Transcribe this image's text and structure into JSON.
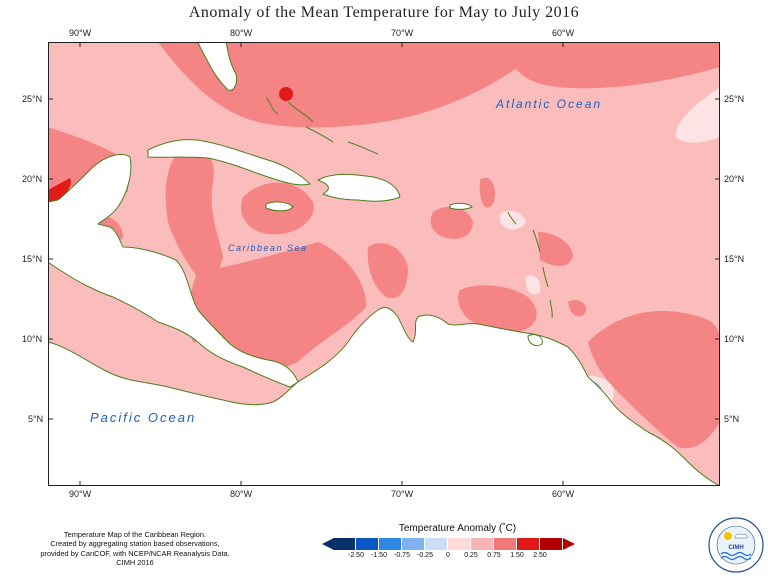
{
  "title": "Anomaly of the Mean Temperature for May to July 2016",
  "axes": {
    "longitude_top": [
      "90°W",
      "80°W",
      "70°W",
      "60°W"
    ],
    "longitude_bottom": [
      "90°W",
      "80°W",
      "70°W",
      "60°W"
    ],
    "latitude_left": [
      "25°N",
      "20°N",
      "15°N",
      "10°N",
      "5°N"
    ],
    "latitude_right": [
      "25°N",
      "20°N",
      "15°N",
      "10°N",
      "5°N"
    ]
  },
  "labels": {
    "atlantic": "Atlantic Ocean",
    "caribbean": "Caribbean Sea",
    "pacific": "Pacific Ocean"
  },
  "credit": {
    "line1": "Temperature Map of the Caribbean Region.",
    "line2": "Created by aggregating station based observations,",
    "line3": "provided by CariCOF, with NCEP/NCAR Reanalysis Data.",
    "line4": "CIMH 2016"
  },
  "legend": {
    "title": "Temperature Anomaly (˚C)",
    "ticks": [
      "-2.50",
      "-1.50",
      "-0.75",
      "-0.25",
      "0",
      "0.25",
      "0.75",
      "1.50",
      "2.50"
    ],
    "colors": [
      "#08306b",
      "#0a56c9",
      "#2f86e6",
      "#7fb3f0",
      "#c9ddf7",
      "#fbdada",
      "#fbb4b4",
      "#f27a7a",
      "#e01818",
      "#b30000"
    ]
  },
  "logo": {
    "text": "CIMH"
  },
  "map_colors": {
    "sea_base": "#fbbcbc",
    "warm": "#f58585",
    "hot": "#e31a1a",
    "cool": "#fde3e3",
    "cold": "#8fb8ee",
    "land": "#ffffff",
    "coast": "#4f7d1f"
  }
}
